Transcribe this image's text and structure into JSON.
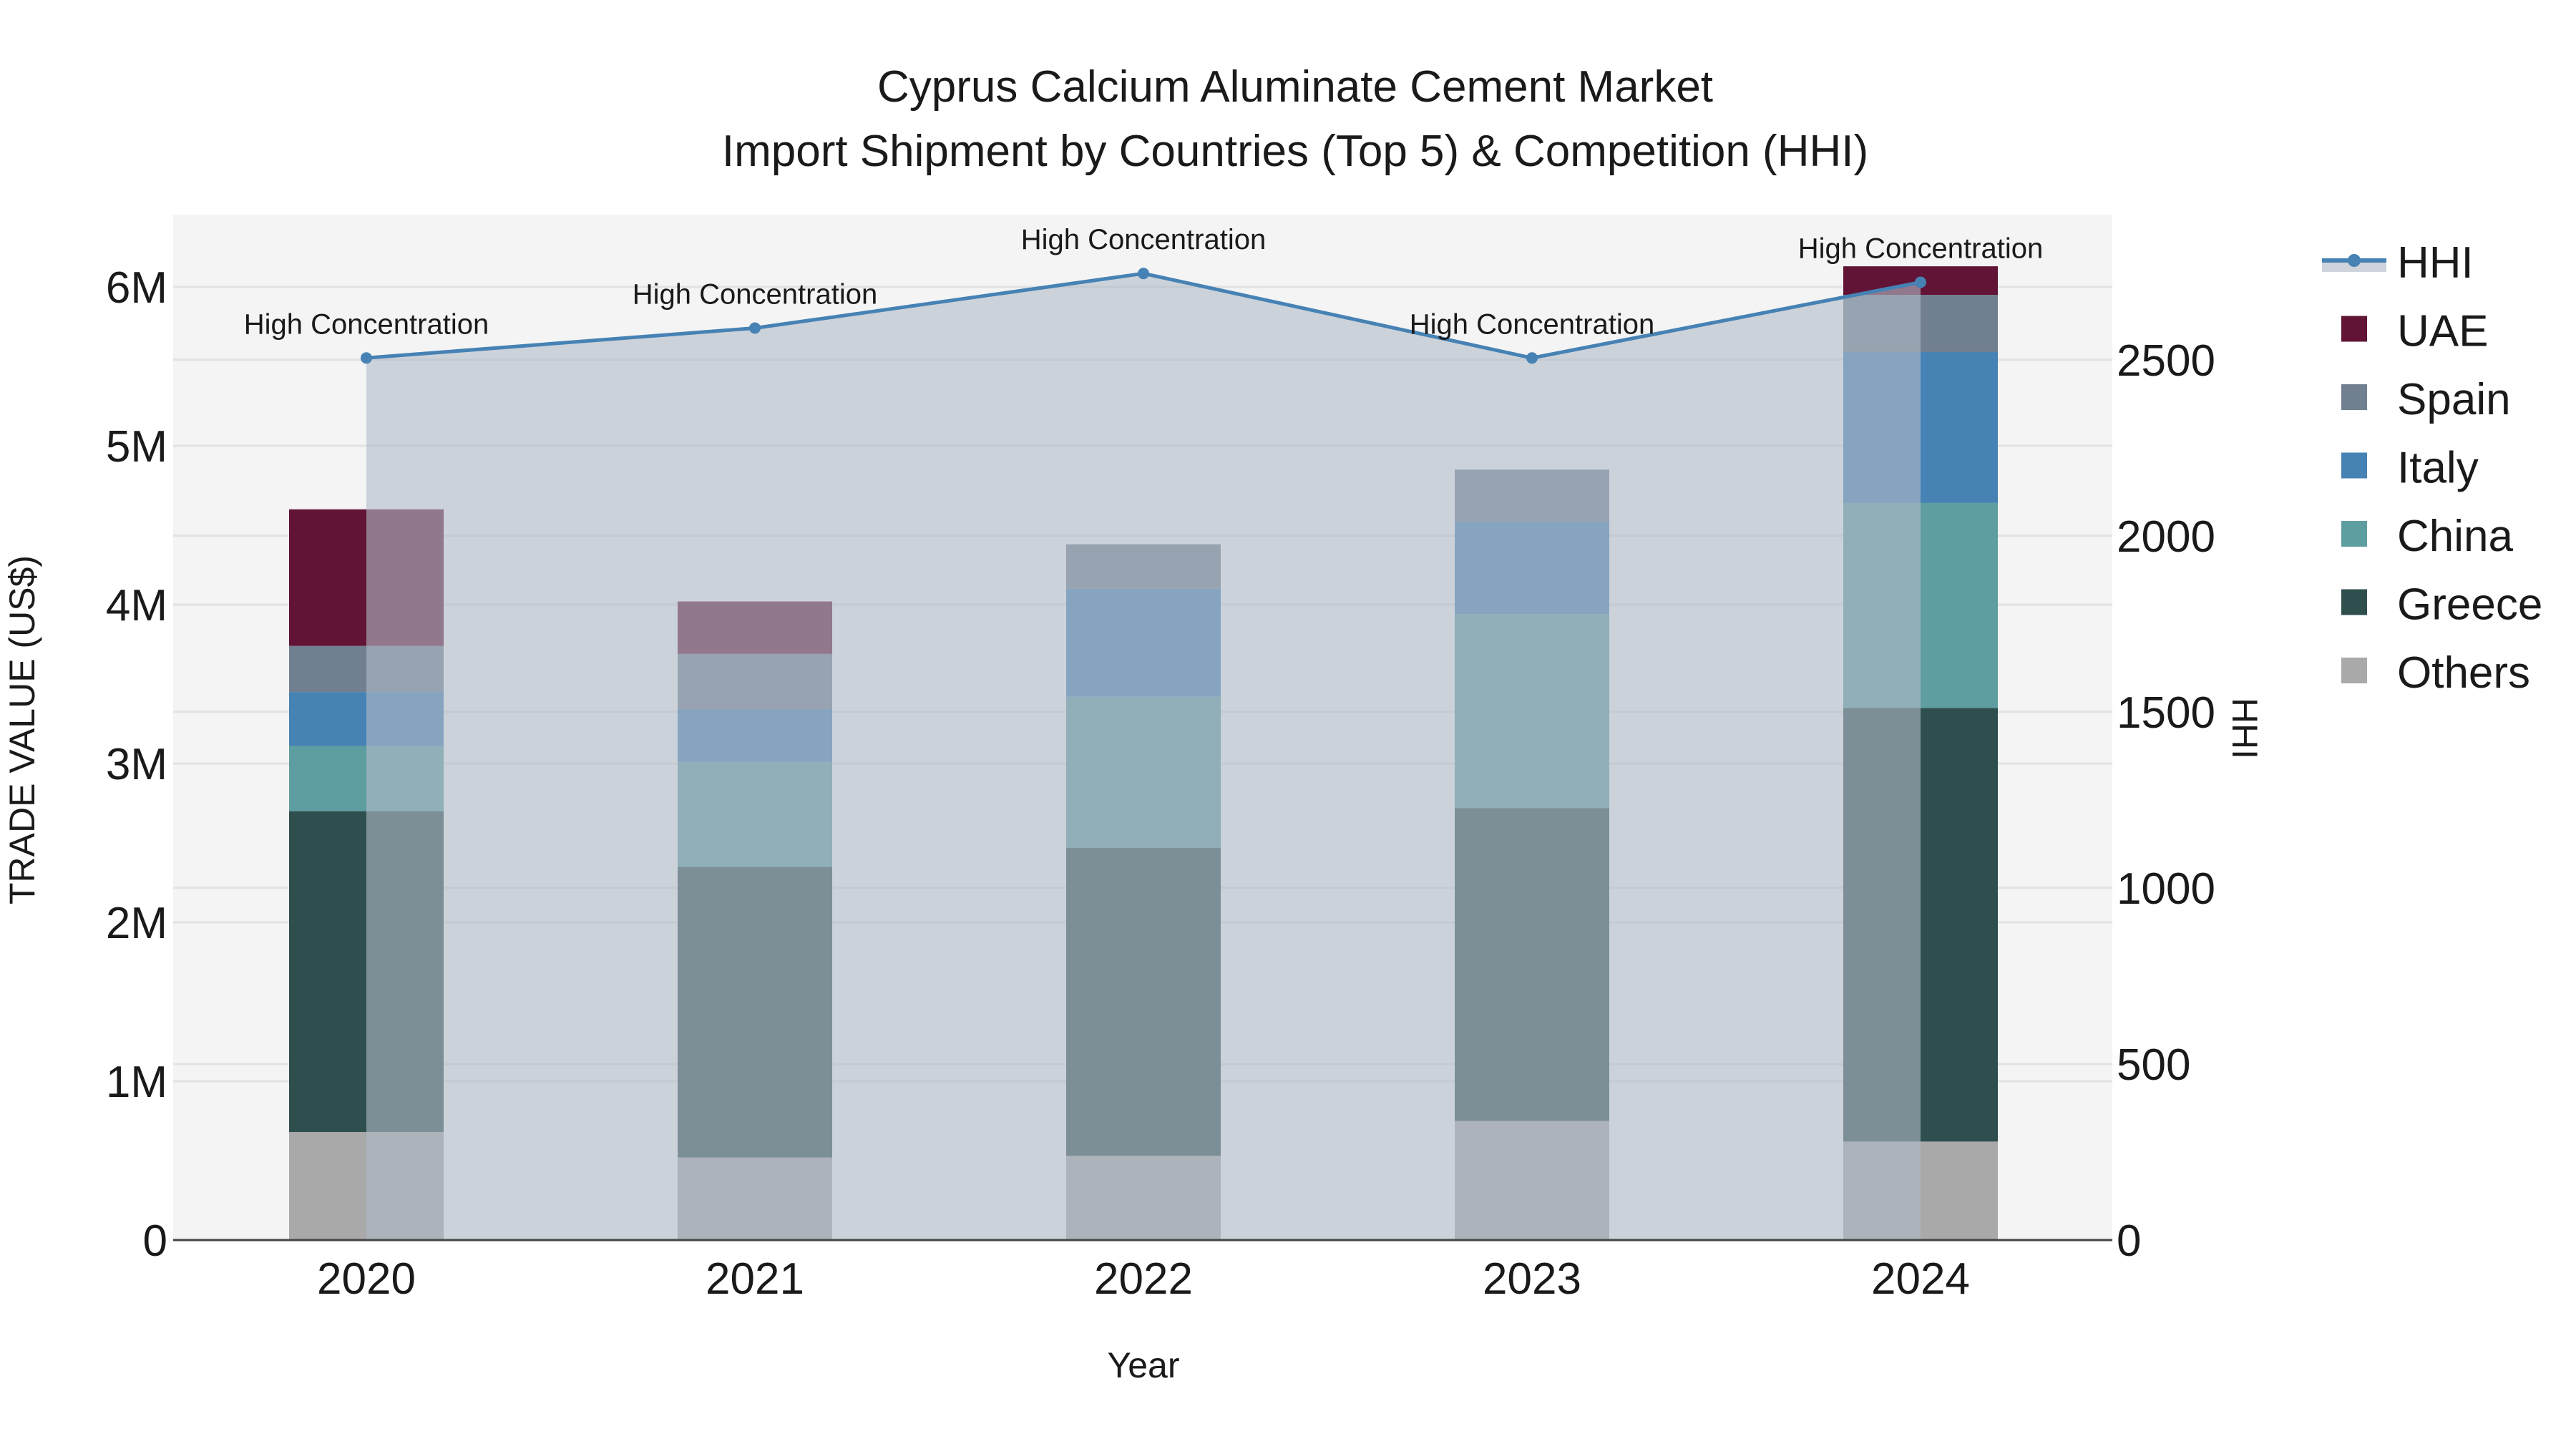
{
  "title": {
    "line1": "Cyprus Calcium Aluminate Cement Market",
    "line2": "Import Shipment by Countries (Top 5) & Competition (HHI)"
  },
  "axes": {
    "x_label": "Year",
    "y_left_label": "TRADE VALUE (US$)",
    "y_right_label": "HHI",
    "y_left_ticks": [
      "0",
      "1M",
      "2M",
      "3M",
      "4M",
      "5M",
      "6M"
    ],
    "y_right_ticks": [
      "0",
      "500",
      "1000",
      "1500",
      "2000",
      "2500"
    ]
  },
  "legend": [
    {
      "name": "HHI",
      "color": "#4682b4",
      "kind": "line"
    },
    {
      "name": "UAE",
      "color": "#621436",
      "kind": "box"
    },
    {
      "name": "Spain",
      "color": "#708090",
      "kind": "box"
    },
    {
      "name": "Italy",
      "color": "#4682b4",
      "kind": "box"
    },
    {
      "name": "China",
      "color": "#5f9ea0",
      "kind": "box"
    },
    {
      "name": "Greece",
      "color": "#2f4f4f",
      "kind": "box"
    },
    {
      "name": "Others",
      "color": "#a9a9a9",
      "kind": "box"
    }
  ],
  "colors": {
    "plot_bg": "#f4f4f4",
    "grid": "#e2e2e2",
    "hhi_line": "#4682b4",
    "hhi_fill": "rgba(176,186,200,0.6)"
  },
  "chart_data": {
    "type": "bar",
    "stacked": true,
    "title": "Cyprus Calcium Aluminate Cement Market — Import Shipment by Countries (Top 5) & Competition (HHI)",
    "xlabel": "Year",
    "ylabel": "TRADE VALUE (US$)",
    "y2label": "HHI",
    "categories": [
      "2020",
      "2021",
      "2022",
      "2023",
      "2024"
    ],
    "ylim": [
      0,
      6450000
    ],
    "y2lim": [
      0,
      2880
    ],
    "series": [
      {
        "name": "Others",
        "color": "#a9a9a9",
        "values": [
          680000,
          520000,
          530000,
          750000,
          620000
        ]
      },
      {
        "name": "Greece",
        "color": "#2f4f4f",
        "values": [
          2020000,
          1830000,
          1940000,
          1970000,
          2730000
        ]
      },
      {
        "name": "China",
        "color": "#5f9ea0",
        "values": [
          410000,
          660000,
          950000,
          1220000,
          1290000
        ]
      },
      {
        "name": "Italy",
        "color": "#4682b4",
        "values": [
          340000,
          330000,
          680000,
          580000,
          950000
        ]
      },
      {
        "name": "Spain",
        "color": "#708090",
        "values": [
          290000,
          350000,
          280000,
          330000,
          360000
        ]
      },
      {
        "name": "UAE",
        "color": "#621436",
        "values": [
          860000,
          330000,
          0,
          0,
          180000
        ]
      }
    ],
    "line_series": {
      "name": "HHI",
      "axis": "right",
      "values": [
        2505,
        2590,
        2745,
        2505,
        2720
      ],
      "annotations": [
        "High Concentration",
        "High Concentration",
        "High Concentration",
        "High Concentration",
        "High Concentration"
      ]
    },
    "grid": true,
    "legend_position": "right"
  }
}
